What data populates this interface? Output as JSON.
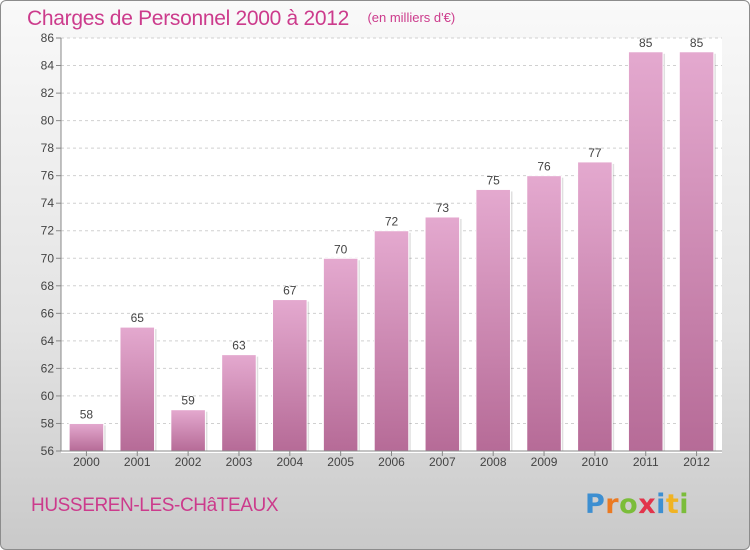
{
  "chart_data": {
    "type": "bar",
    "title": "Charges de Personnel 2000 à 2012",
    "subtitle": "(en milliers d'€)",
    "categories": [
      "2000",
      "2001",
      "2002",
      "2003",
      "2004",
      "2005",
      "2006",
      "2007",
      "2008",
      "2009",
      "2010",
      "2011",
      "2012"
    ],
    "values": [
      58,
      65,
      59,
      63,
      67,
      70,
      72,
      73,
      75,
      76,
      77,
      85,
      85
    ],
    "ylim": [
      56,
      86
    ],
    "yticks": [
      56,
      58,
      60,
      62,
      64,
      66,
      68,
      70,
      72,
      74,
      76,
      78,
      80,
      82,
      84,
      86
    ],
    "grid": true,
    "bar_color": "#d693bd"
  },
  "place_name": "HUSSEREN-LES-CHâTEAUX",
  "logo": {
    "text": "Proxiti"
  },
  "colors": {
    "title": "#cc3b8c",
    "accent": "#d693bd"
  }
}
